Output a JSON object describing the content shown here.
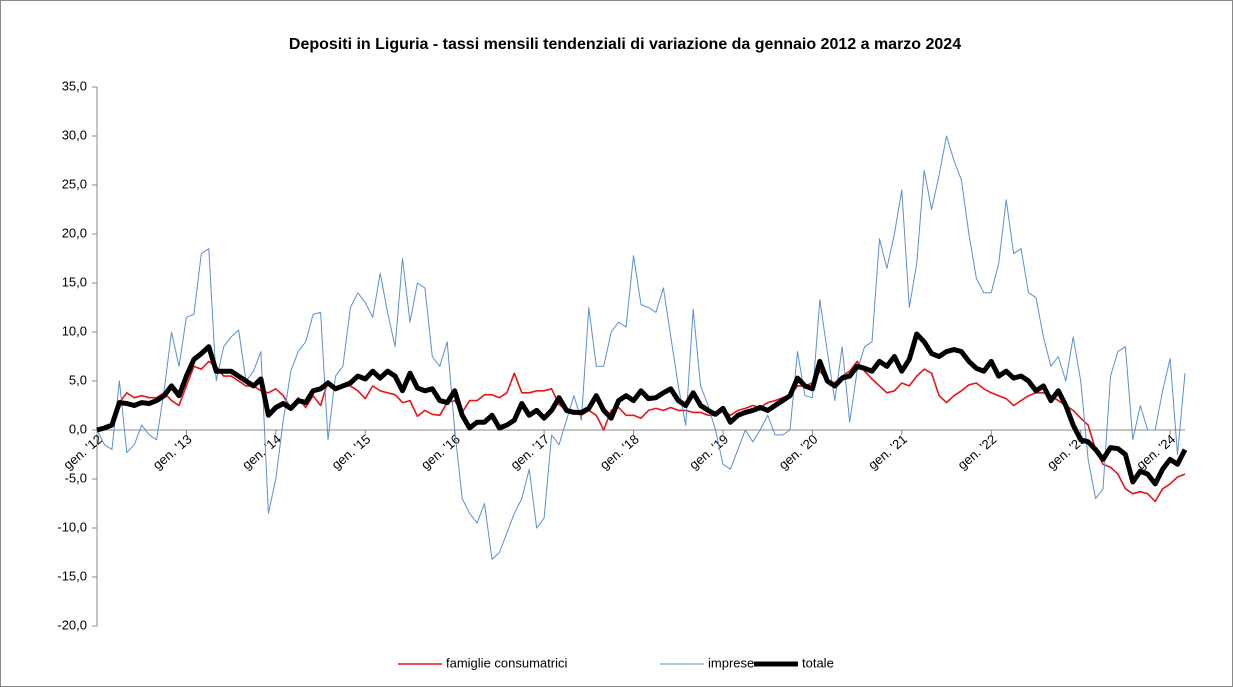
{
  "chart_data": {
    "type": "line",
    "title": "Depositi in Liguria - tassi mensili tendenziali di variazione da gennaio 2012  a marzo  2024",
    "categories": [
      "gen. '12",
      null,
      null,
      null,
      null,
      null,
      null,
      null,
      null,
      null,
      null,
      null,
      "gen. '13",
      null,
      null,
      null,
      null,
      null,
      null,
      null,
      null,
      null,
      null,
      null,
      "gen. '14",
      null,
      null,
      null,
      null,
      null,
      null,
      null,
      null,
      null,
      null,
      null,
      "gen. '15",
      null,
      null,
      null,
      null,
      null,
      null,
      null,
      null,
      null,
      null,
      null,
      "gen. '16",
      null,
      null,
      null,
      null,
      null,
      null,
      null,
      null,
      null,
      null,
      null,
      "gen. '17",
      null,
      null,
      null,
      null,
      null,
      null,
      null,
      null,
      null,
      null,
      null,
      "gen. '18",
      null,
      null,
      null,
      null,
      null,
      null,
      null,
      null,
      null,
      null,
      null,
      "gen. '19",
      null,
      null,
      null,
      null,
      null,
      null,
      null,
      null,
      null,
      null,
      null,
      "gen. '20",
      null,
      null,
      null,
      null,
      null,
      null,
      null,
      null,
      null,
      null,
      null,
      "gen. '21",
      null,
      null,
      null,
      null,
      null,
      null,
      null,
      null,
      null,
      null,
      null,
      "gen. '22",
      null,
      null,
      null,
      null,
      null,
      null,
      null,
      null,
      null,
      null,
      null,
      "gen. '23",
      null,
      null,
      null,
      null,
      null,
      null,
      null,
      null,
      null,
      null,
      null,
      "gen. '24",
      null,
      null
    ],
    "series": [
      {
        "name": "famiglie consumatrici",
        "color": "#e8131b",
        "width": 1.6,
        "values": [
          0,
          0.3,
          0.5,
          2.8,
          3.8,
          3.3,
          3.5,
          3.3,
          3.3,
          3.8,
          3.0,
          2.5,
          4.5,
          6.5,
          6.2,
          7.0,
          6.5,
          5.5,
          5.5,
          5.0,
          4.5,
          4.5,
          4.0,
          3.8,
          4.2,
          3.5,
          2.2,
          3.3,
          2.3,
          3.5,
          2.5,
          5.0,
          4.3,
          4.5,
          4.5,
          4.0,
          3.2,
          4.5,
          4.0,
          3.8,
          3.6,
          2.8,
          3.0,
          1.4,
          2.0,
          1.6,
          1.5,
          2.8,
          3.0,
          1.8,
          3.0,
          3.0,
          3.6,
          3.6,
          3.3,
          3.8,
          5.8,
          3.8,
          3.8,
          4.0,
          4.0,
          4.2,
          2.6,
          2.0,
          1.8,
          1.5,
          2.0,
          1.5,
          0.0,
          2.0,
          2.3,
          1.5,
          1.5,
          1.2,
          2.0,
          2.2,
          2.0,
          2.3,
          2.0,
          2.0,
          1.8,
          1.8,
          1.5,
          1.5,
          2.0,
          1.5,
          2.0,
          2.2,
          2.5,
          2.3,
          2.8,
          3.0,
          3.3,
          3.5,
          4.5,
          4.5,
          4.8,
          6.0,
          5.0,
          4.8,
          5.5,
          6.0,
          7.0,
          6.0,
          5.2,
          4.5,
          3.8,
          4.0,
          4.8,
          4.5,
          5.5,
          6.2,
          5.8,
          3.5,
          2.8,
          3.5,
          4.0,
          4.6,
          4.8,
          4.2,
          3.8,
          3.5,
          3.2,
          2.5,
          3.0,
          3.5,
          3.8,
          3.8,
          3.5,
          3.0,
          2.5,
          2.0,
          1.2,
          0.5,
          -2.0,
          -3.5,
          -3.8,
          -4.5,
          -6.0,
          -6.5,
          -6.3,
          -6.5,
          -7.3,
          -6.0,
          -5.5,
          -4.8,
          -4.5
        ]
      },
      {
        "name": "imprese",
        "color": "#5b8fd0",
        "width": 1,
        "values": [
          0,
          -1.5,
          -2.0,
          5.0,
          -2.3,
          -1.5,
          0.5,
          -0.5,
          -1.0,
          4.0,
          10.0,
          6.5,
          11.5,
          11.8,
          18.0,
          18.5,
          5.0,
          8.5,
          9.5,
          10.2,
          5.0,
          6.0,
          8.0,
          -8.5,
          -5.0,
          1.0,
          6.0,
          8.0,
          9.0,
          11.8,
          12.0,
          -1.0,
          5.5,
          6.5,
          12.5,
          14.0,
          13.0,
          11.5,
          16.0,
          12.0,
          8.5,
          17.5,
          11.0,
          15.0,
          14.5,
          7.5,
          6.5,
          9.0,
          0.0,
          -7.0,
          -8.5,
          -9.5,
          -7.5,
          -13.2,
          -12.5,
          -10.5,
          -8.5,
          -7.0,
          -4.0,
          -10.0,
          -9.0,
          -0.5,
          -1.5,
          1.0,
          3.5,
          1.0,
          12.5,
          6.5,
          6.5,
          10.0,
          11.0,
          10.5,
          17.8,
          12.8,
          12.5,
          12.0,
          14.5,
          9.5,
          4.5,
          0.5,
          12.3,
          4.5,
          2.5,
          0.0,
          -3.5,
          -4.0,
          -2.0,
          0.0,
          -1.2,
          0.0,
          1.5,
          -0.5,
          -0.5,
          0.0,
          8.0,
          3.5,
          3.3,
          13.3,
          8.0,
          3.0,
          8.5,
          0.8,
          6.0,
          8.5,
          9.0,
          19.5,
          16.5,
          20.0,
          24.5,
          12.5,
          17.0,
          26.5,
          22.5,
          26.0,
          30.0,
          27.5,
          25.5,
          20.0,
          15.5,
          14.0,
          14.0,
          17.0,
          23.5,
          18.0,
          18.5,
          14.0,
          13.5,
          9.5,
          6.5,
          7.5,
          5.0,
          9.5,
          5.0,
          -3.0,
          -7.0,
          -6.0,
          5.5,
          8.0,
          8.5,
          -1.0,
          2.5,
          0.0,
          0.0,
          4.0,
          7.3,
          -2.5,
          5.8
        ]
      },
      {
        "name": "totale",
        "color": "#000000",
        "width": 5,
        "values": [
          0,
          0.2,
          0.5,
          2.8,
          2.7,
          2.5,
          2.8,
          2.7,
          3.0,
          3.5,
          4.5,
          3.5,
          5.5,
          7.2,
          7.8,
          8.5,
          6.0,
          6.0,
          6.0,
          5.5,
          5.0,
          4.5,
          5.2,
          1.5,
          2.3,
          2.7,
          2.2,
          3.0,
          2.8,
          4.0,
          4.2,
          4.8,
          4.2,
          4.5,
          4.8,
          5.5,
          5.2,
          6.0,
          5.3,
          6.0,
          5.5,
          4.0,
          5.8,
          4.3,
          4.0,
          4.2,
          3.0,
          2.8,
          4.0,
          1.5,
          0.2,
          0.8,
          0.8,
          1.5,
          0.2,
          0.5,
          1.0,
          2.7,
          1.5,
          2.0,
          1.2,
          2.0,
          3.3,
          2.0,
          1.8,
          1.8,
          2.2,
          3.5,
          2.0,
          1.2,
          3.0,
          3.5,
          3.0,
          4.0,
          3.2,
          3.3,
          3.8,
          4.2,
          3.0,
          2.5,
          3.8,
          2.5,
          2.0,
          1.6,
          2.2,
          0.8,
          1.5,
          1.8,
          2.0,
          2.3,
          2.0,
          2.5,
          3.0,
          3.5,
          5.3,
          4.5,
          4.2,
          7.0,
          5.0,
          4.5,
          5.3,
          5.5,
          6.5,
          6.3,
          6.0,
          7.0,
          6.5,
          7.5,
          6.0,
          7.2,
          9.8,
          9.0,
          7.8,
          7.5,
          8.0,
          8.2,
          8.0,
          7.0,
          6.3,
          6.0,
          7.0,
          5.5,
          6.0,
          5.3,
          5.5,
          5.0,
          4.0,
          4.5,
          3.0,
          4.0,
          2.5,
          0.5,
          -1.0,
          -1.2,
          -2.0,
          -3.0,
          -1.8,
          -1.9,
          -2.5,
          -5.3,
          -4.2,
          -4.5,
          -5.5,
          -4.0,
          -3.0,
          -3.5,
          -2.0
        ]
      }
    ],
    "ylim": [
      -20,
      35
    ],
    "yticks": [
      {
        "value": -20,
        "label": "-20,0"
      },
      {
        "value": -15,
        "label": "-15,0"
      },
      {
        "value": -10,
        "label": "-10,0"
      },
      {
        "value": -5,
        "label": "-5,0"
      },
      {
        "value": 0,
        "label": "0,0"
      },
      {
        "value": 5,
        "label": "5,0"
      },
      {
        "value": 10,
        "label": "10,0"
      },
      {
        "value": 15,
        "label": "15,0"
      },
      {
        "value": 20,
        "label": "20,0"
      },
      {
        "value": 25,
        "label": "25,0"
      },
      {
        "value": 30,
        "label": "30,0"
      },
      {
        "value": 35,
        "label": "35,0"
      }
    ],
    "grid": false,
    "legend": "bottom"
  }
}
